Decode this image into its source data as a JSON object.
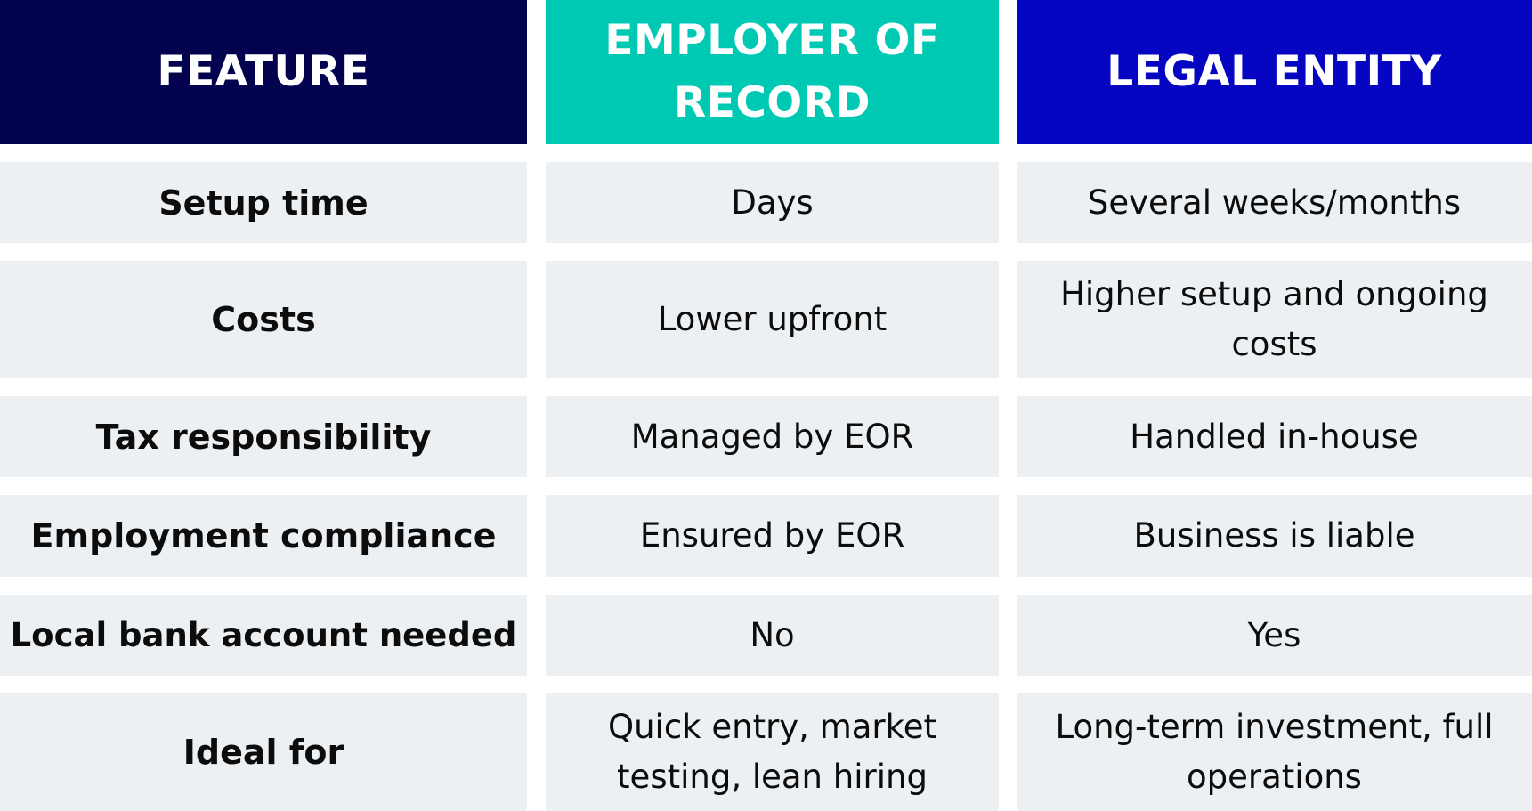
{
  "header": {
    "feature": "FEATURE",
    "eor": "EMPLOYER OF RECORD",
    "entity": "LEGAL ENTITY"
  },
  "rows": [
    {
      "feature": "Setup time",
      "eor": "Days",
      "entity": "Several weeks/months"
    },
    {
      "feature": "Costs",
      "eor": "Lower upfront",
      "entity": "Higher setup and ongoing costs"
    },
    {
      "feature": "Tax responsibility",
      "eor": "Managed by EOR",
      "entity": "Handled in-house"
    },
    {
      "feature": "Employment compliance",
      "eor": "Ensured by EOR",
      "entity": "Business is liable"
    },
    {
      "feature": "Local bank account needed",
      "eor": "No",
      "entity": "Yes"
    },
    {
      "feature": "Ideal for",
      "eor": "Quick entry, market testing, lean hiring",
      "entity": "Long-term investment, full operations"
    }
  ],
  "colors": {
    "feature_header": "#02024f",
    "eor_header": "#00c9b3",
    "entity_header": "#0505c2",
    "row_background": "#ecf0f3"
  }
}
